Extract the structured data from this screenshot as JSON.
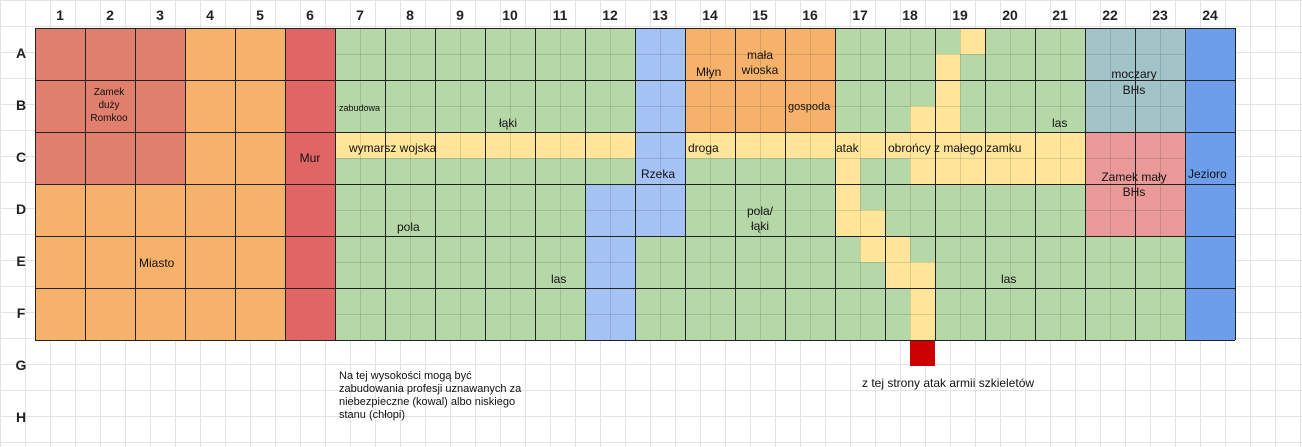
{
  "columns": [
    "1",
    "2",
    "3",
    "4",
    "5",
    "6",
    "7",
    "8",
    "9",
    "10",
    "11",
    "12",
    "13",
    "14",
    "15",
    "16",
    "17",
    "18",
    "19",
    "20",
    "21",
    "22",
    "23",
    "24"
  ],
  "rows": [
    "A",
    "B",
    "C",
    "D",
    "E",
    "F",
    "G",
    "H"
  ],
  "colors": {
    "castle_big": "#e07f6e",
    "city": "#f6b26b",
    "wall": "#e06666",
    "meadow": "#b6d7a8",
    "river": "#a4c2f4",
    "road": "#ffe599",
    "swamp": "#a2c4c9",
    "castle_small": "#ea9999",
    "lake": "#6d9eeb",
    "enemy": "#cc0000"
  },
  "labels": {
    "zamek_duzy": "Zamek duży Romkoo",
    "zabudowa": "zabudowa",
    "laki": "łąki",
    "mlyn": "Młyn",
    "mala_wioska": "mała wioska",
    "gospoda": "gospoda",
    "moczary": "moczary BHs",
    "las_b21": "las",
    "mur": "Mur",
    "wymarsz": "wymarsz wojska",
    "rzeka": "Rzeka",
    "droga": "droga",
    "atak": "atak",
    "obroncy": "obrońcy z małego zamku",
    "zamek_maly": "Zamek mały BHs",
    "jezioro": "Jezioro",
    "pola": "pola",
    "pola_laki": "pola/ łąki",
    "miasto": "Miasto",
    "las_e11": "las",
    "las_e20": "las",
    "note_profesje": "Na tej wysokości mogą być zabudowania profesji uznawanych za niebezpieczne (kowal) albo niskiego stanu (chłopi)",
    "note_szkielety": "z tej strony atak armii szkieletów"
  }
}
